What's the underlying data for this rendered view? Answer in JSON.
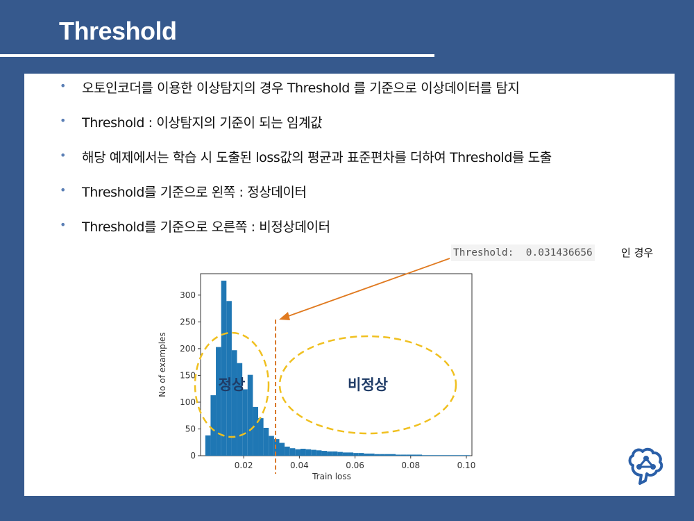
{
  "slide": {
    "title": "Threshold",
    "bullets": [
      "오토인코더를 이용한 이상탐지의 경우 Threshold 를 기준으로 이상데이터를 탐지",
      "Threshold : 이상탐지의 기준이 되는 임계값",
      "해당 예제에서는 학습 시 도출된 loss값의 평균과 표준편차를 더하여 Threshold를 도출",
      "Threshold를 기준으로 왼쪽 : 정상데이터",
      "Threshold를 기준으로 오른쪽 : 비정상데이터"
    ],
    "threshold_code": "Threshold:  0.031436656",
    "threshold_suffix": "인 경우",
    "colors": {
      "background": "#36598d",
      "bar": "#1f77b4",
      "ellipse": "#f0c020",
      "arrow": "#e07a20",
      "region_label": "#1f3b66"
    }
  },
  "chart_data": {
    "type": "bar",
    "xlabel": "Train loss",
    "ylabel": "No of examples",
    "xlim": [
      0.0045,
      0.102
    ],
    "ylim": [
      0,
      340
    ],
    "xticks": [
      0.02,
      0.04,
      0.06,
      0.08,
      0.1
    ],
    "xtick_labels": [
      "0.02",
      "0.04",
      "0.06",
      "0.08",
      "0.10"
    ],
    "yticks": [
      0,
      50,
      100,
      150,
      200,
      250,
      300
    ],
    "ytick_labels": [
      "0",
      "50",
      "100",
      "150",
      "200",
      "250",
      "300"
    ],
    "bin_start": 0.0062,
    "bin_width": 0.0019,
    "values": [
      38,
      113,
      203,
      327,
      289,
      197,
      173,
      124,
      151,
      91,
      70,
      52,
      37,
      31,
      24,
      17,
      14,
      12,
      13,
      12,
      11,
      10,
      9,
      8,
      8,
      7,
      6,
      6,
      5,
      5,
      4,
      4,
      3,
      3,
      3,
      3,
      2,
      2,
      2,
      2,
      2,
      1,
      1,
      1,
      1,
      1,
      1,
      1,
      1,
      1
    ],
    "threshold": 0.031436656,
    "annotations": {
      "normal": "정상",
      "abnormal": "비정상"
    }
  }
}
